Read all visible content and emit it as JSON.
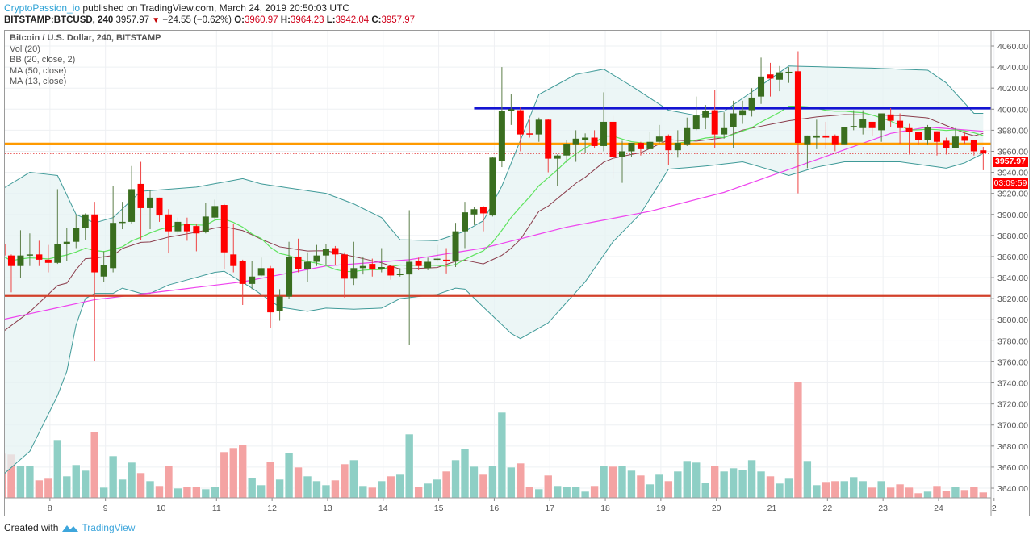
{
  "header": {
    "author": "CryptoPassion_io",
    "published": " published on TradingView.com, March 24, 2019 20:50:03 UTC",
    "symbol": "BITSTAMP:BTCUSD, 240",
    "last": "3957.97",
    "change": "−24.55 (−0.62%)",
    "o_label": "O:",
    "o": "3960.97",
    "h_label": "H:",
    "h": "3964.23",
    "l_label": "L:",
    "l": "3942.04",
    "c_label": "C:",
    "c": "3957.97",
    "direction_icon": "triangle-down"
  },
  "legend": {
    "title": "Bitcoin / U.S. Dollar, 240, BITSTAMP",
    "items": [
      "Vol (20)",
      "BB (20, close, 2)",
      "MA (50, close)",
      "MA (13, close)"
    ]
  },
  "price_label": {
    "value": "3957.97",
    "countdown": "03:09:59"
  },
  "footer": {
    "created_with": "Created with",
    "brand": "TradingView"
  },
  "colors": {
    "up": "#3a6e1f",
    "down": "#ff0000",
    "vol_up": "#8ecfc5",
    "vol_down": "#f4a3a3",
    "bb": "#3f9a98",
    "bb_fill": "#e6f3f3",
    "basis": "#8b3d4c",
    "ma13": "#5ee35e",
    "ma50": "#ee44ee",
    "resistance": "#1414d2",
    "mid_level": "#ff9a00",
    "support": "#d2402a"
  },
  "chart_data": {
    "type": "candlestick",
    "interval": "240",
    "ylim": [
      3630,
      4070
    ],
    "y_ticks": [
      "3640.00",
      "3660.00",
      "3680.00",
      "3700.00",
      "3720.00",
      "3740.00",
      "3760.00",
      "3780.00",
      "3800.00",
      "3820.00",
      "3840.00",
      "3860.00",
      "3880.00",
      "3900.00",
      "3920.00",
      "3940.00",
      "3960.00",
      "3980.00",
      "4000.00",
      "4020.00",
      "4040.00",
      "4060.00"
    ],
    "x_ticks": [
      {
        "label": "8",
        "bar": 5
      },
      {
        "label": "9",
        "bar": 11
      },
      {
        "label": "10",
        "bar": 17
      },
      {
        "label": "11",
        "bar": 23
      },
      {
        "label": "12",
        "bar": 29
      },
      {
        "label": "13",
        "bar": 35
      },
      {
        "label": "14",
        "bar": 41
      },
      {
        "label": "15",
        "bar": 47
      },
      {
        "label": "16",
        "bar": 53
      },
      {
        "label": "17",
        "bar": 59
      },
      {
        "label": "18",
        "bar": 65
      },
      {
        "label": "19",
        "bar": 71
      },
      {
        "label": "20",
        "bar": 77
      },
      {
        "label": "21",
        "bar": 83
      },
      {
        "label": "22",
        "bar": 89
      },
      {
        "label": "23",
        "bar": 95
      },
      {
        "label": "24",
        "bar": 101
      },
      {
        "label": "2",
        "bar": 107
      }
    ],
    "grid": true,
    "ohlc": [
      [
        3872,
        3880,
        3855,
        3861
      ],
      [
        3861,
        3862,
        3826,
        3851
      ],
      [
        3851,
        3885,
        3840,
        3861
      ],
      [
        3861,
        3882,
        3851,
        3862
      ],
      [
        3862,
        3875,
        3851,
        3857
      ],
      [
        3857,
        3871,
        3845,
        3854
      ],
      [
        3854,
        3924,
        3853,
        3872
      ],
      [
        3872,
        3887,
        3856,
        3874
      ],
      [
        3874,
        3900,
        3868,
        3887
      ],
      [
        3887,
        3901,
        3876,
        3900
      ],
      [
        3900,
        3912,
        3761,
        3845
      ],
      [
        3841,
        3865,
        3836,
        3852
      ],
      [
        3849,
        3927,
        3845,
        3892
      ],
      [
        3892,
        3912,
        3886,
        3893
      ],
      [
        3893,
        3946,
        3891,
        3924
      ],
      [
        3929,
        3950,
        3876,
        3906
      ],
      [
        3906,
        3923,
        3886,
        3916
      ],
      [
        3916,
        3916,
        3893,
        3899
      ],
      [
        3900,
        3905,
        3863,
        3884
      ],
      [
        3884,
        3897,
        3881,
        3893
      ],
      [
        3891,
        3897,
        3875,
        3884
      ],
      [
        3889,
        3891,
        3865,
        3882
      ],
      [
        3883,
        3911,
        3882,
        3898
      ],
      [
        3897,
        3914,
        3896,
        3908
      ],
      [
        3909,
        3910,
        3848,
        3864
      ],
      [
        3862,
        3891,
        3845,
        3851
      ],
      [
        3856,
        3857,
        3814,
        3834
      ],
      [
        3834,
        3856,
        3829,
        3841
      ],
      [
        3842,
        3859,
        3841,
        3849
      ],
      [
        3849,
        3851,
        3792,
        3807
      ],
      [
        3808,
        3829,
        3799,
        3822
      ],
      [
        3822,
        3874,
        3820,
        3860
      ],
      [
        3860,
        3877,
        3845,
        3848
      ],
      [
        3848,
        3864,
        3836,
        3855
      ],
      [
        3855,
        3871,
        3851,
        3861
      ],
      [
        3861,
        3872,
        3852,
        3867
      ],
      [
        3868,
        3870,
        3852,
        3862
      ],
      [
        3862,
        3864,
        3821,
        3839
      ],
      [
        3839,
        3874,
        3833,
        3849
      ],
      [
        3849,
        3860,
        3843,
        3851
      ],
      [
        3853,
        3858,
        3841,
        3848
      ],
      [
        3848,
        3868,
        3845,
        3850
      ],
      [
        3851,
        3852,
        3838,
        3842
      ],
      [
        3843,
        3849,
        3841,
        3843.5
      ],
      [
        3843,
        3904,
        3776,
        3855
      ],
      [
        3856,
        3859,
        3847,
        3851
      ],
      [
        3849,
        3859,
        3847,
        3855
      ],
      [
        3857,
        3871,
        3855,
        3858
      ],
      [
        3857,
        3868,
        3844,
        3856
      ],
      [
        3856,
        3892,
        3850,
        3884
      ],
      [
        3884,
        3912,
        3868,
        3902
      ],
      [
        3900,
        3907,
        3890,
        3905
      ],
      [
        3907,
        3908,
        3884,
        3901
      ],
      [
        3899,
        3955,
        3898,
        3954
      ],
      [
        3951,
        4040,
        3945,
        3998
      ],
      [
        3998,
        4014,
        3985,
        4000
      ],
      [
        3999,
        4002,
        3960,
        3976
      ],
      [
        3977,
        3990,
        3973,
        3976
      ],
      [
        3976,
        3992,
        3969,
        3990
      ],
      [
        3990,
        3991,
        3940,
        3953
      ],
      [
        3953,
        3957,
        3927,
        3956
      ],
      [
        3956,
        3971,
        3949,
        3967
      ],
      [
        3966,
        3980,
        3950,
        3972
      ],
      [
        3971,
        3977,
        3958,
        3973
      ],
      [
        3973,
        3980,
        3963,
        3965
      ],
      [
        3965,
        4016,
        3960,
        3988
      ],
      [
        3988,
        3994,
        3934,
        3955
      ],
      [
        3955,
        3970,
        3930,
        3960
      ],
      [
        3960,
        3968,
        3955,
        3968
      ],
      [
        3968,
        3969,
        3956,
        3962
      ],
      [
        3962,
        3978,
        3962,
        3969
      ],
      [
        3969,
        3985,
        3967,
        3974
      ],
      [
        3975,
        3976,
        3947,
        3961
      ],
      [
        3961,
        3980,
        3954,
        3968
      ],
      [
        3966,
        3992,
        3965,
        3982
      ],
      [
        3981,
        4012,
        3980,
        3994
      ],
      [
        3992,
        4004,
        3981,
        3998
      ],
      [
        3999,
        4018,
        3963,
        3976
      ],
      [
        3976,
        3997,
        3972,
        3982
      ],
      [
        3983,
        4008,
        3963,
        3996
      ],
      [
        3994,
        4008,
        3986,
        3999
      ],
      [
        3999,
        4020,
        3993,
        4011
      ],
      [
        4012,
        4049,
        4005,
        4031
      ],
      [
        4033,
        4044,
        4012,
        4029
      ],
      [
        4028,
        4041,
        4017,
        4035
      ],
      [
        4035,
        4040,
        4025,
        4035.5
      ],
      [
        4036,
        4055,
        3920,
        3968
      ],
      [
        3966,
        3975,
        3944,
        3975
      ],
      [
        3973,
        3990,
        3962,
        3975
      ],
      [
        3975,
        3988,
        3962,
        3973
      ],
      [
        3975,
        3976,
        3960,
        3966
      ],
      [
        3966,
        3983,
        3966,
        3983
      ],
      [
        3983,
        3999,
        3980,
        3984
      ],
      [
        3982,
        3999,
        3976,
        3991
      ],
      [
        3988,
        3988,
        3975,
        3982
      ],
      [
        3980,
        3996,
        3969,
        3996
      ],
      [
        3995,
        4001,
        3983,
        3989
      ],
      [
        3989,
        3996,
        3967,
        3982
      ],
      [
        3982,
        3986,
        3957,
        3978
      ],
      [
        3978,
        3978,
        3966,
        3971
      ],
      [
        3971,
        3985,
        3966,
        3983
      ],
      [
        3979,
        3979,
        3956,
        3969
      ],
      [
        3970,
        3973,
        3957,
        3963
      ],
      [
        3963,
        3982,
        3963,
        3974
      ],
      [
        3974,
        3978,
        3967,
        3970
      ],
      [
        3971,
        3971,
        3956,
        3960
      ],
      [
        3960.97,
        3964.23,
        3942.04,
        3957.97
      ]
    ],
    "volume_relative": [
      55,
      54,
      40,
      40,
      22,
      24,
      72,
      27,
      41,
      34,
      82,
      13,
      52,
      23,
      44,
      31,
      21,
      15,
      40,
      12,
      14,
      14,
      11,
      14,
      57,
      62,
      66,
      25,
      16,
      45,
      23,
      56,
      38,
      27,
      21,
      16,
      22,
      42,
      47,
      15,
      13,
      21,
      27,
      29,
      79,
      14,
      18,
      23,
      33,
      47,
      61,
      39,
      29,
      40,
      106,
      38,
      43,
      14,
      11,
      28,
      15,
      14,
      14,
      8,
      15,
      40,
      39,
      40,
      34,
      28,
      17,
      29,
      21,
      33,
      46,
      44,
      19,
      40,
      33,
      37,
      35,
      47,
      33,
      27,
      18,
      24,
      144,
      46,
      16,
      20,
      21,
      21,
      26,
      21,
      13,
      21,
      13,
      17,
      13,
      6,
      8,
      15,
      9,
      14,
      10,
      14,
      7
    ],
    "bb_upper": [
      [
        0,
        3924
      ],
      [
        3,
        3940
      ],
      [
        6,
        3937
      ],
      [
        8,
        3900
      ],
      [
        10,
        3892
      ],
      [
        12,
        3897
      ],
      [
        15,
        3922
      ],
      [
        21,
        3926
      ],
      [
        26,
        3934
      ],
      [
        28,
        3929
      ],
      [
        35,
        3920
      ],
      [
        38,
        3910
      ],
      [
        41,
        3897
      ],
      [
        43,
        3876
      ],
      [
        47,
        3875
      ],
      [
        50,
        3884
      ],
      [
        52,
        3894
      ],
      [
        54,
        3927
      ],
      [
        58,
        4014
      ],
      [
        62,
        4033
      ],
      [
        65,
        4038
      ],
      [
        68,
        4022
      ],
      [
        72,
        3999
      ],
      [
        75,
        3994
      ],
      [
        78,
        3998
      ],
      [
        85,
        4041
      ],
      [
        94,
        4039
      ],
      [
        100,
        4037
      ],
      [
        102,
        4025
      ],
      [
        105,
        3996
      ],
      [
        106,
        3996
      ]
    ],
    "bb_lower": [
      [
        0,
        3652
      ],
      [
        3,
        3675
      ],
      [
        6,
        3728
      ],
      [
        7,
        3751
      ],
      [
        8,
        3795
      ],
      [
        9,
        3820
      ],
      [
        10,
        3825
      ],
      [
        12,
        3825
      ],
      [
        13,
        3830
      ],
      [
        15,
        3825
      ],
      [
        16,
        3825
      ],
      [
        18,
        3833
      ],
      [
        23,
        3845
      ],
      [
        24,
        3846
      ],
      [
        27,
        3830
      ],
      [
        29,
        3818
      ],
      [
        30,
        3812
      ],
      [
        33,
        3808
      ],
      [
        35,
        3811
      ],
      [
        38,
        3810
      ],
      [
        41,
        3811
      ],
      [
        43,
        3820
      ],
      [
        47,
        3824
      ],
      [
        49,
        3830
      ],
      [
        50,
        3829
      ],
      [
        52,
        3812
      ],
      [
        55,
        3787
      ],
      [
        56,
        3782
      ],
      [
        59,
        3797
      ],
      [
        63,
        3836
      ],
      [
        66,
        3874
      ],
      [
        69,
        3901
      ],
      [
        72,
        3943
      ],
      [
        76,
        3946
      ],
      [
        80,
        3950
      ],
      [
        82,
        3945
      ],
      [
        85,
        3937
      ],
      [
        88,
        3945
      ],
      [
        91,
        3950
      ],
      [
        97,
        3950
      ],
      [
        102,
        3944
      ],
      [
        104,
        3949
      ],
      [
        106,
        3958
      ]
    ],
    "ma50": [
      [
        0,
        3800
      ],
      [
        10,
        3819
      ],
      [
        26,
        3836
      ],
      [
        35,
        3851
      ],
      [
        44,
        3857
      ],
      [
        52,
        3868
      ],
      [
        61,
        3888
      ],
      [
        70,
        3903
      ],
      [
        78,
        3921
      ],
      [
        87,
        3949
      ],
      [
        96,
        3977
      ],
      [
        100,
        3983
      ],
      [
        106,
        3979
      ]
    ],
    "ma13_period": 13,
    "horizontal_levels": [
      {
        "price": 4001,
        "from_bar": 51,
        "color_key": "resistance"
      },
      {
        "price": 3967,
        "from_bar": 0,
        "color_key": "mid_level"
      },
      {
        "price": 3823,
        "from_bar": 0,
        "color_key": "support"
      }
    ],
    "last_price": 3957.97
  }
}
